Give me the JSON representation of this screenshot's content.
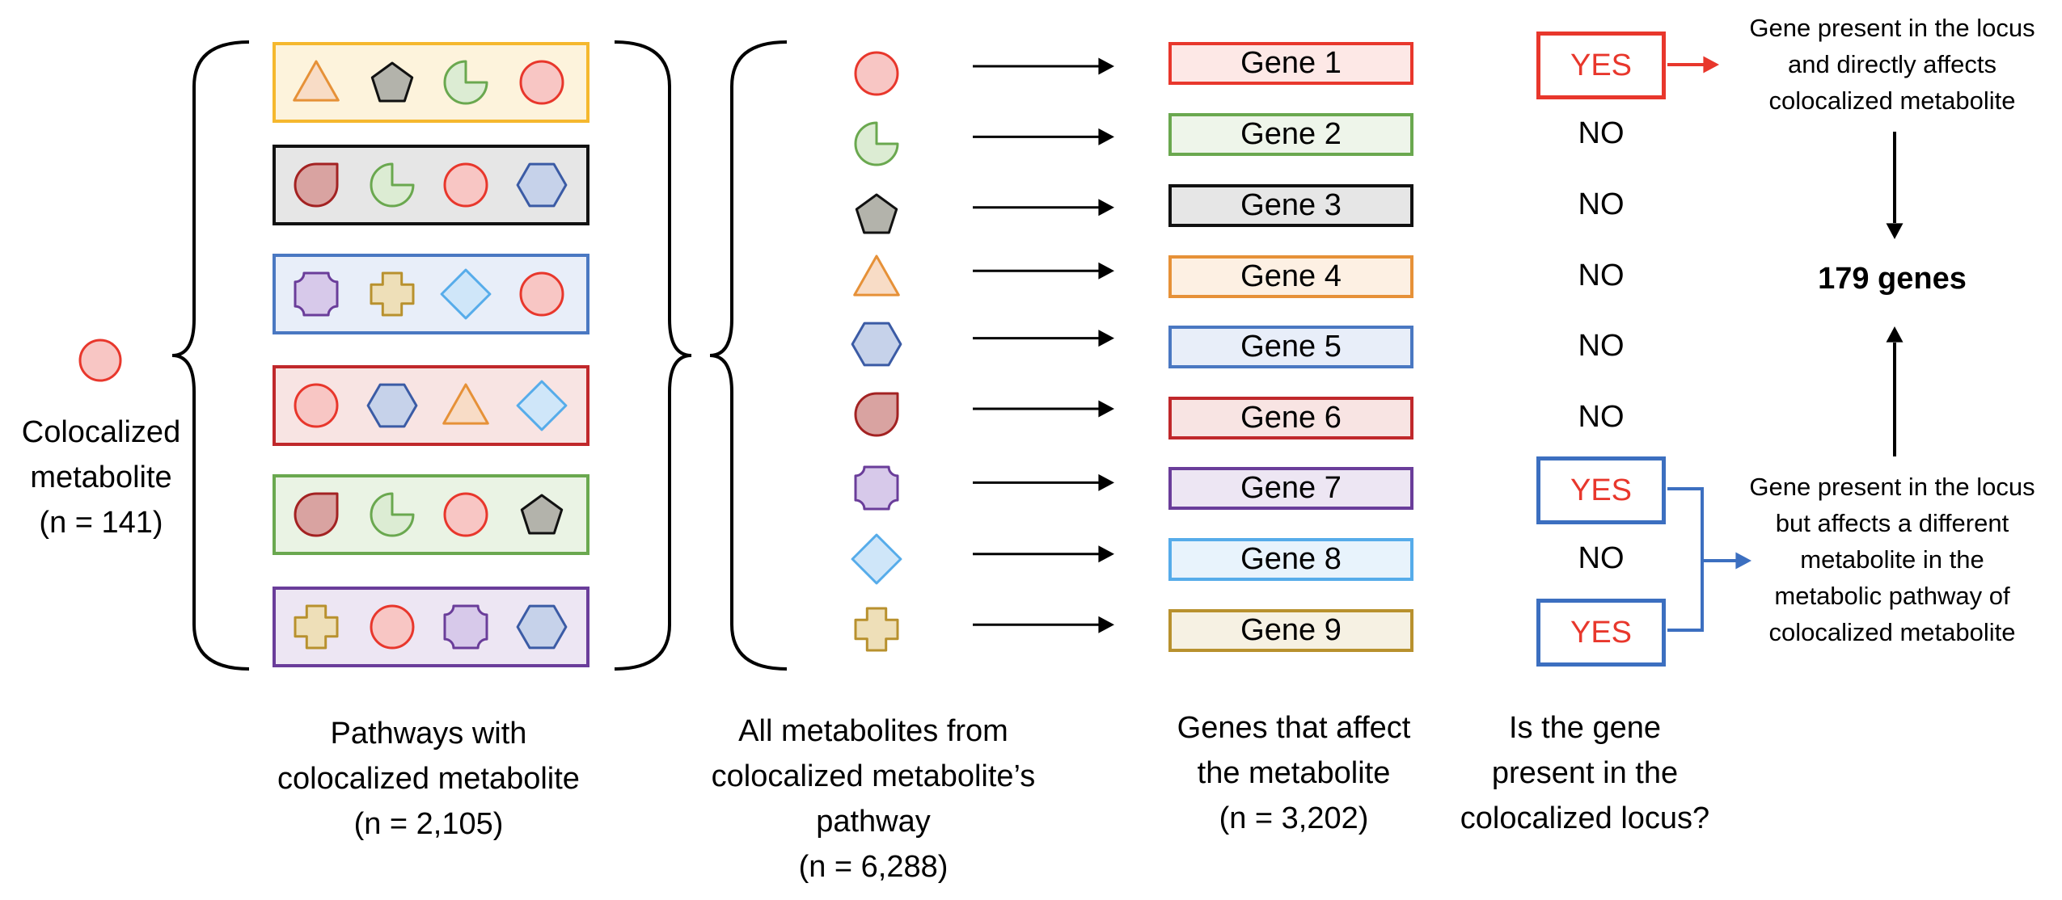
{
  "colocalized": {
    "lines": [
      "Colocalized",
      "metabolite",
      "(n = 141)"
    ],
    "shape": "circle"
  },
  "pathways": {
    "boxes": [
      {
        "color": "#f5b82e",
        "fill": "#fdf3dc",
        "shapes": [
          "triangle",
          "pentagon",
          "pacman",
          "circle"
        ]
      },
      {
        "color": "#111111",
        "fill": "#e6e6e6",
        "shapes": [
          "drop",
          "pacman",
          "circle",
          "hexagon"
        ]
      },
      {
        "color": "#4a78c2",
        "fill": "#e8eef9",
        "shapes": [
          "octagon",
          "cross",
          "diamond",
          "circle"
        ]
      },
      {
        "color": "#c0282b",
        "fill": "#f8e4e3",
        "shapes": [
          "circle",
          "hexagon",
          "triangle",
          "diamond"
        ]
      },
      {
        "color": "#6aa84f",
        "fill": "#eaf3e4",
        "shapes": [
          "drop",
          "pacman",
          "circle",
          "pentagon"
        ]
      },
      {
        "color": "#6a3d9a",
        "fill": "#ede6f3",
        "shapes": [
          "cross",
          "circle",
          "octagon",
          "hexagon"
        ]
      }
    ],
    "caption": [
      "Pathways with",
      "colocalized metabolite",
      "(n = 2,105)"
    ]
  },
  "metabolites": {
    "shapes": [
      "circle",
      "pacman",
      "pentagon",
      "triangle",
      "hexagon",
      "drop",
      "octagon",
      "diamond",
      "cross"
    ],
    "caption": [
      "All metabolites from",
      "colocalized metabolite’s",
      "pathway",
      "(n = 6,288)"
    ]
  },
  "genes": {
    "items": [
      {
        "label": "Gene 1",
        "color": "#e8372c",
        "fill": "#fde8e6",
        "answer": "YES",
        "answer_color": "#e8372c"
      },
      {
        "label": "Gene 2",
        "color": "#6aa84f",
        "fill": "#eef5ea",
        "answer": "NO"
      },
      {
        "label": "Gene 3",
        "color": "#111111",
        "fill": "#e6e6e6",
        "answer": "NO"
      },
      {
        "label": "Gene 4",
        "color": "#e69138",
        "fill": "#fdf0e3",
        "answer": "NO"
      },
      {
        "label": "Gene 5",
        "color": "#4a78c2",
        "fill": "#e8eef9",
        "answer": "NO"
      },
      {
        "label": "Gene 6",
        "color": "#c0282b",
        "fill": "#f8e4e3",
        "answer": "NO"
      },
      {
        "label": "Gene 7",
        "color": "#6a3d9a",
        "fill": "#ede6f3",
        "answer": "YES",
        "answer_color": "#3c6fc0"
      },
      {
        "label": "Gene 8",
        "color": "#56acea",
        "fill": "#e8f3fc",
        "answer": "NO"
      },
      {
        "label": "Gene 9",
        "color": "#b8912e",
        "fill": "#f6f1e3",
        "answer": "YES",
        "answer_color": "#3c6fc0"
      }
    ],
    "caption": [
      "Genes that affect",
      "the metabolite",
      "(n = 3,202)"
    ]
  },
  "question": {
    "caption": [
      "Is the gene",
      "present in the",
      "colocalized locus?"
    ]
  },
  "yes_text_color": "#e8372c",
  "notes": {
    "direct": [
      "Gene present in the locus",
      "and directly affects",
      "colocalized metabolite"
    ],
    "indirect": [
      "Gene present in the locus",
      "but affects a different",
      "metabolite in the",
      "metabolic pathway of",
      "colocalized metabolite"
    ],
    "direct_color": "#e8372c",
    "indirect_color": "#3c6fc0"
  },
  "result": "179 genes",
  "shape_styles": {
    "circle": {
      "stroke": "#e8372c",
      "fill": "#f8c6c4"
    },
    "pacman": {
      "stroke": "#6aa84f",
      "fill": "#dcecd3"
    },
    "pentagon": {
      "stroke": "#111111",
      "fill": "#b3b3ab"
    },
    "triangle": {
      "stroke": "#e69138",
      "fill": "#f8dcc6"
    },
    "hexagon": {
      "stroke": "#3b5ba5",
      "fill": "#c6d2ea"
    },
    "drop": {
      "stroke": "#a32222",
      "fill": "#d9a3a1"
    },
    "octagon": {
      "stroke": "#6a3d9a",
      "fill": "#d7c9ea"
    },
    "diamond": {
      "stroke": "#56acea",
      "fill": "#cfe6f9"
    },
    "cross": {
      "stroke": "#b8912e",
      "fill": "#eedfb8"
    }
  }
}
